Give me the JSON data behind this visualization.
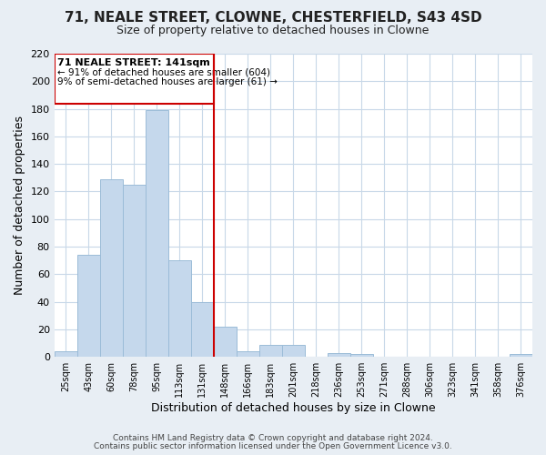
{
  "title": "71, NEALE STREET, CLOWNE, CHESTERFIELD, S43 4SD",
  "subtitle": "Size of property relative to detached houses in Clowne",
  "xlabel": "Distribution of detached houses by size in Clowne",
  "ylabel": "Number of detached properties",
  "bar_color": "#c5d8ec",
  "bar_edge_color": "#9bbcd8",
  "categories": [
    "25sqm",
    "43sqm",
    "60sqm",
    "78sqm",
    "95sqm",
    "113sqm",
    "131sqm",
    "148sqm",
    "166sqm",
    "183sqm",
    "201sqm",
    "218sqm",
    "236sqm",
    "253sqm",
    "271sqm",
    "288sqm",
    "306sqm",
    "323sqm",
    "341sqm",
    "358sqm",
    "376sqm"
  ],
  "values": [
    4,
    74,
    129,
    125,
    179,
    70,
    40,
    22,
    4,
    9,
    9,
    0,
    3,
    2,
    0,
    0,
    0,
    0,
    0,
    0,
    2
  ],
  "ylim": [
    0,
    220
  ],
  "yticks": [
    0,
    20,
    40,
    60,
    80,
    100,
    120,
    140,
    160,
    180,
    200,
    220
  ],
  "annotation_title": "71 NEALE STREET: 141sqm",
  "annotation_line1": "← 91% of detached houses are smaller (604)",
  "annotation_line2": "9% of semi-detached houses are larger (61) →",
  "footer1": "Contains HM Land Registry data © Crown copyright and database right 2024.",
  "footer2": "Contains public sector information licensed under the Open Government Licence v3.0.",
  "background_color": "#e8eef4",
  "plot_bg_color": "#ffffff",
  "grid_color": "#c8d8e8",
  "vline_color": "#cc0000",
  "vline_x": 7.5
}
